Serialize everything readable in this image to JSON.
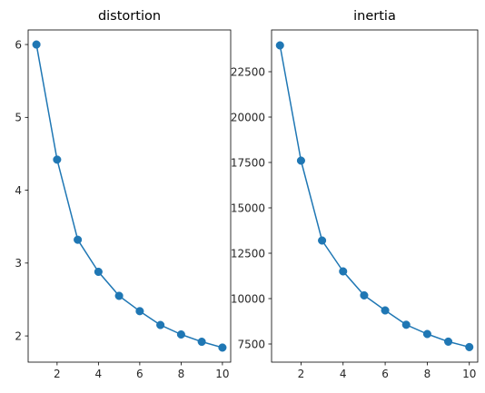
{
  "chart_data": [
    {
      "type": "line",
      "title": "distortion",
      "xlabel": "",
      "ylabel": "",
      "x": [
        1,
        2,
        3,
        4,
        5,
        6,
        7,
        8,
        9,
        10
      ],
      "y": [
        6.0,
        4.42,
        3.32,
        2.88,
        2.55,
        2.34,
        2.15,
        2.02,
        1.92,
        1.84
      ],
      "xlim": [
        0.6,
        10.4
      ],
      "ylim": [
        1.64,
        6.2
      ],
      "xticks": [
        2,
        4,
        6,
        8,
        10
      ],
      "yticks": [
        2,
        3,
        4,
        5,
        6
      ],
      "ytick_labels": [
        "2",
        "3",
        "4",
        "5",
        "6"
      ],
      "marker": "circle",
      "grid": false,
      "color": "#1f77b4"
    },
    {
      "type": "line",
      "title": "inertia",
      "xlabel": "",
      "ylabel": "",
      "x": [
        1,
        2,
        3,
        4,
        5,
        6,
        7,
        8,
        9,
        10
      ],
      "y": [
        23950,
        17600,
        13200,
        11500,
        10180,
        9350,
        8560,
        8050,
        7630,
        7330
      ],
      "xlim": [
        0.6,
        10.4
      ],
      "ylim": [
        6500,
        24800
      ],
      "xticks": [
        2,
        4,
        6,
        8,
        10
      ],
      "yticks": [
        7500,
        10000,
        12500,
        15000,
        17500,
        20000,
        22500
      ],
      "ytick_labels": [
        "7500",
        "10000",
        "12500",
        "15000",
        "17500",
        "20000",
        "22500"
      ],
      "marker": "circle",
      "grid": false,
      "color": "#1f77b4"
    }
  ]
}
